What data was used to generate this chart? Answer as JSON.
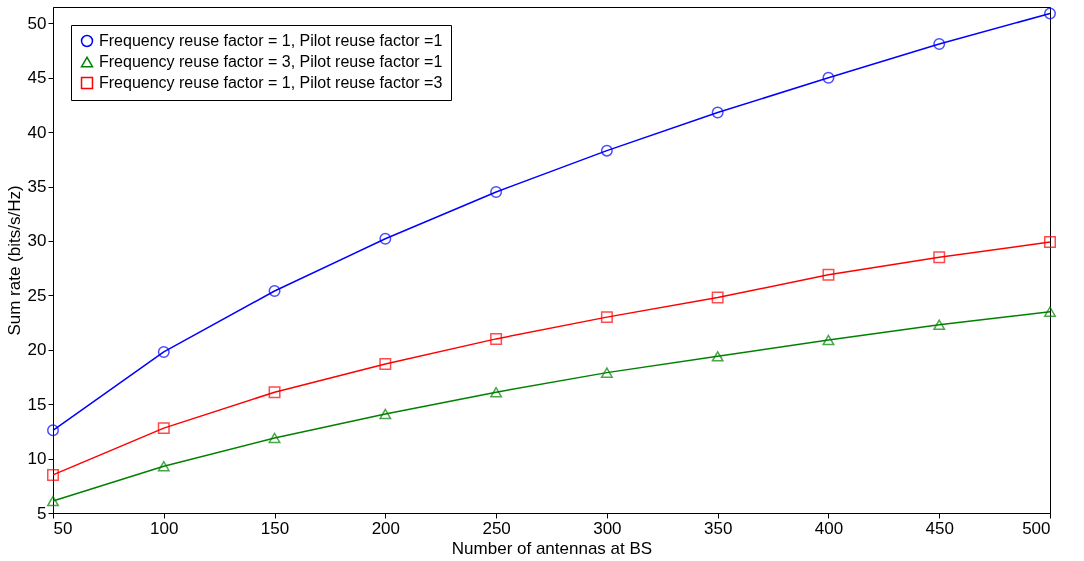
{
  "chart_data": {
    "type": "line",
    "xlabel": "Number of antennas at BS",
    "ylabel": "Sum rate (bits/s/Hz)",
    "x": [
      50,
      100,
      150,
      200,
      250,
      300,
      350,
      400,
      450,
      500
    ],
    "series": [
      {
        "name": "Frequency reuse factor = 1, Pilot reuse factor =1",
        "color": "#0000ff",
        "marker": "circle",
        "values": [
          12.6,
          19.8,
          25.4,
          30.2,
          34.5,
          38.3,
          41.8,
          45.0,
          48.1,
          50.9
        ]
      },
      {
        "name": "Frequency reuse factor = 3, Pilot reuse factor =1",
        "color": "#008000",
        "marker": "triangle",
        "values": [
          6.1,
          9.3,
          11.9,
          14.1,
          16.1,
          17.9,
          19.4,
          20.9,
          22.3,
          23.5
        ]
      },
      {
        "name": "Frequency reuse factor = 1, Pilot reuse factor =3",
        "color": "#ff0000",
        "marker": "square",
        "values": [
          8.5,
          12.8,
          16.1,
          18.7,
          21.0,
          23.0,
          24.8,
          26.9,
          28.5,
          29.9
        ]
      }
    ],
    "xlim": [
      50,
      500
    ],
    "xticks": [
      50,
      100,
      150,
      200,
      250,
      300,
      350,
      400,
      450,
      500
    ],
    "ylim": [
      5,
      51.5
    ],
    "yticks": [
      5,
      10,
      15,
      20,
      25,
      30,
      35,
      40,
      45,
      50
    ],
    "grid": false,
    "legend": "top left",
    "line_style": "solid"
  }
}
